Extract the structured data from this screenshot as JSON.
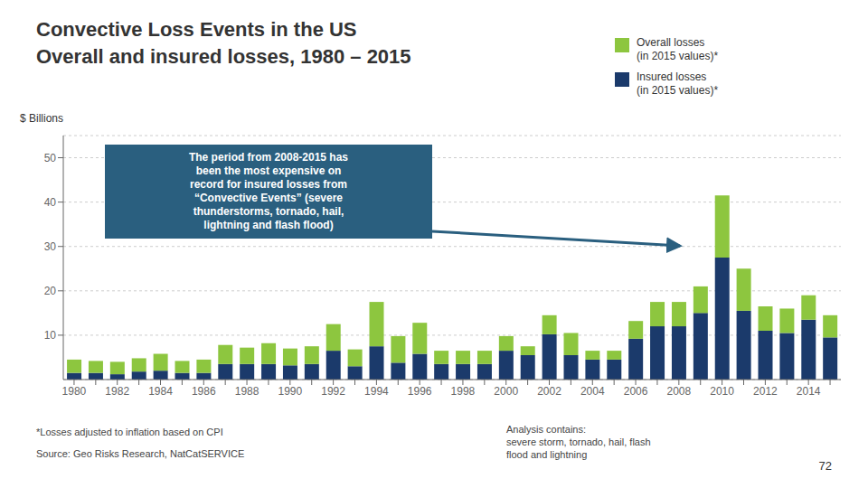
{
  "chart_data": {
    "type": "bar",
    "title": "Convective Loss Events in the US",
    "subtitle": "Overall and insured losses, 1980 – 2015",
    "ylabel": "$ Billions",
    "categories": [
      "1980",
      null,
      "1982",
      null,
      "1984",
      null,
      "1986",
      null,
      "1988",
      null,
      "1990",
      null,
      "1992",
      null,
      "1994",
      null,
      "1996",
      null,
      "1998",
      null,
      "2000",
      null,
      "2002",
      null,
      "2004",
      null,
      "2006",
      null,
      "2008",
      null,
      "2010",
      null,
      "2012",
      null,
      "2014",
      null
    ],
    "series": [
      {
        "name": "Insured losses\n(in 2015 values)*",
        "color": "#1b3a6b",
        "values": [
          1.5,
          1.5,
          1.2,
          1.8,
          2.0,
          1.5,
          1.5,
          3.5,
          3.5,
          3.5,
          3.2,
          3.5,
          6.5,
          3.0,
          7.5,
          3.8,
          5.8,
          3.5,
          3.5,
          3.5,
          6.5,
          5.5,
          10.2,
          5.5,
          4.5,
          4.5,
          9.2,
          12.0,
          12.0,
          15.0,
          27.5,
          15.5,
          11.0,
          10.5,
          13.5,
          9.5
        ]
      },
      {
        "name": "Overall losses\n(in 2015 values)*",
        "color": "#8dc63f",
        "values": [
          3.0,
          2.7,
          2.8,
          3.0,
          3.8,
          2.7,
          3.0,
          4.3,
          3.7,
          4.7,
          3.8,
          4.0,
          6.0,
          3.8,
          10.0,
          6.0,
          7.0,
          3.0,
          3.0,
          3.0,
          3.3,
          2.0,
          4.3,
          5.0,
          2.0,
          2.0,
          4.0,
          5.5,
          5.5,
          6.0,
          14.0,
          9.5,
          5.5,
          5.5,
          5.5,
          5.0
        ]
      }
    ],
    "stacked": true,
    "ylim": [
      0,
      55
    ],
    "yticks": [
      10,
      20,
      30,
      40,
      50
    ],
    "grid": true,
    "legend": "upper right",
    "annotations": [
      "The period from 2008-2015 has\nbeen the most expensive on\nrecord for insured losses from\n“Convective Events” (severe\nthunderstorms, tornado, hail,\nlightning and flash flood)",
      "*Losses adjusted to inflation based on CPI",
      "Source: Geo Risks Research, NatCatSERVICE",
      "Analysis contains:\nsevere storm, tornado, hail, flash\nflood and lightning",
      "72"
    ]
  }
}
